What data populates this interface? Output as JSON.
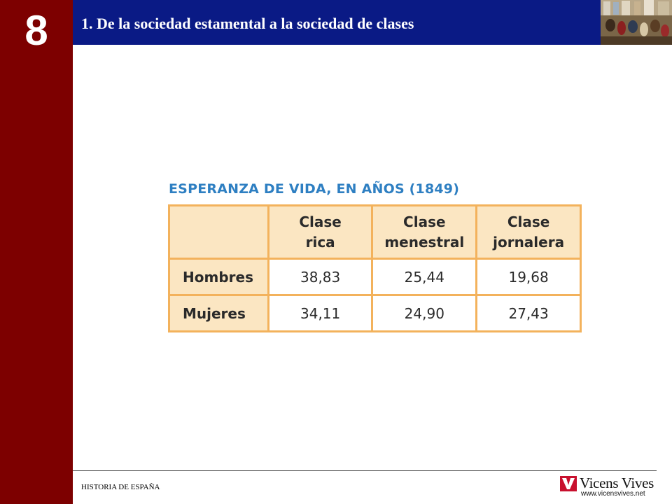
{
  "slide": {
    "chapter_number": "8",
    "title": "1. De la sociedad estamental a la sociedad de clases"
  },
  "table": {
    "title": "ESPERANZA DE VIDA, EN AÑOS (1849)",
    "columns": [
      [
        "Clase",
        "rica"
      ],
      [
        "Clase",
        "menestral"
      ],
      [
        "Clase",
        "jornalera"
      ]
    ],
    "rows": [
      {
        "label": "Hombres",
        "values": [
          "38,83",
          "25,44",
          "19,68"
        ]
      },
      {
        "label": "Mujeres",
        "values": [
          "34,11",
          "24,90",
          "27,43"
        ]
      }
    ]
  },
  "footer": {
    "left_text": "HISTORIA DE ESPAÑA",
    "brand_name": "Vicens Vives",
    "brand_url": "www.vicensvives.net"
  },
  "colors": {
    "left_band": "#7d0000",
    "header_bar": "#0a1a85",
    "table_title": "#2e7fc2",
    "table_border": "#f3b25c",
    "table_header_fill": "#fbe6c2",
    "logo_red": "#c8102e"
  },
  "icons": {
    "header_image": "historical-painting-thumbnail",
    "logo_mark": "vicens-vives-logo-icon"
  }
}
